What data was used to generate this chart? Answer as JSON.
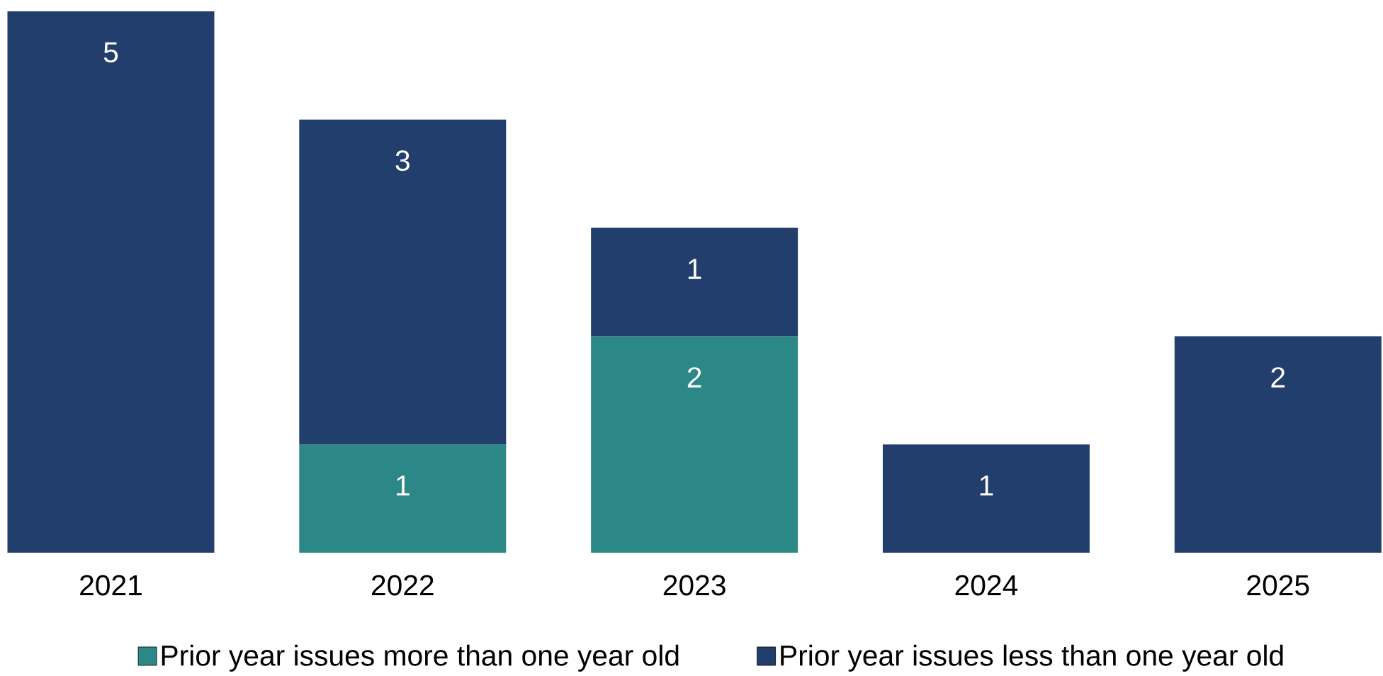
{
  "chart_data": {
    "type": "bar",
    "stacked": true,
    "categories": [
      "2021",
      "2022",
      "2023",
      "2024",
      "2025"
    ],
    "series": [
      {
        "name": "Prior year issues more than one year old",
        "color": "#2c8787",
        "values": [
          null,
          1,
          2,
          null,
          null
        ]
      },
      {
        "name": "Prior year issues less than one year old",
        "color": "#223e6c",
        "values": [
          5,
          3,
          1,
          1,
          2
        ]
      }
    ],
    "data_labels": true,
    "legend": "bottom"
  }
}
